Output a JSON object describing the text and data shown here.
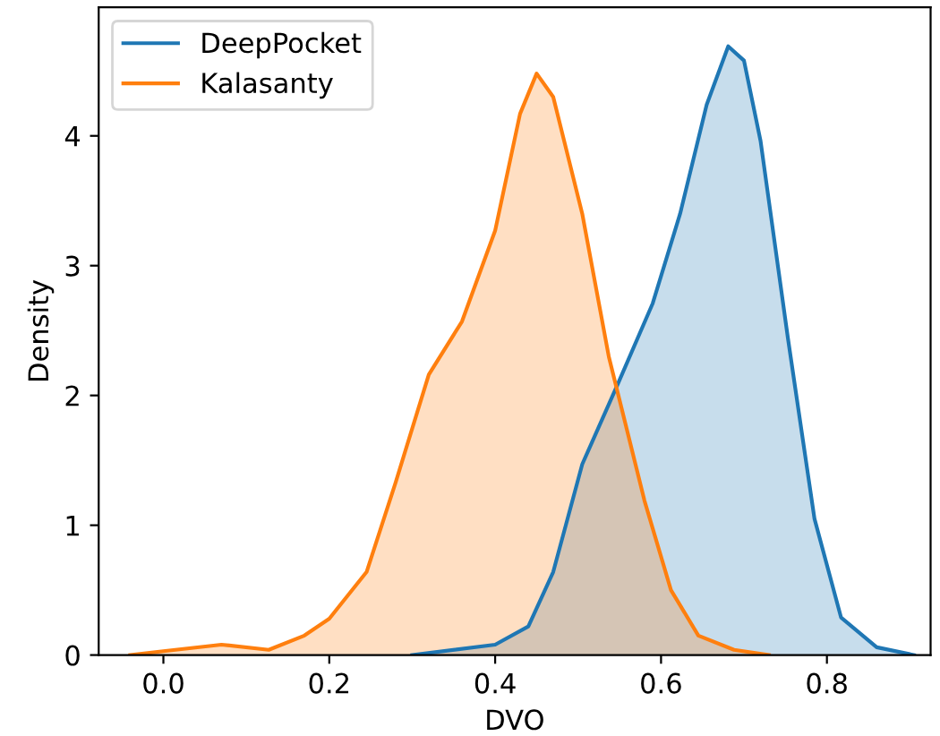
{
  "chart_data": {
    "type": "area",
    "xlabel": "DVO",
    "ylabel": "Density",
    "xlim": [
      -0.078,
      0.925
    ],
    "ylim": [
      0,
      4.99
    ],
    "xticks": [
      {
        "value": 0.0,
        "label": "0.0"
      },
      0.2,
      0.4,
      0.6,
      0.8
    ],
    "yticks": [
      0,
      1,
      2,
      3,
      4
    ],
    "grid": false,
    "legend": "top left",
    "series": [
      {
        "name": "DeepPocket",
        "color": "#1f77b4",
        "x": [
          0.3,
          0.4,
          0.44,
          0.47,
          0.505,
          0.548,
          0.59,
          0.623,
          0.655,
          0.681,
          0.7,
          0.72,
          0.753,
          0.785,
          0.817,
          0.86,
          0.905
        ],
        "values": [
          0,
          0.08,
          0.22,
          0.64,
          1.47,
          2.09,
          2.71,
          3.4,
          4.24,
          4.69,
          4.58,
          3.96,
          2.44,
          1.05,
          0.29,
          0.06,
          0
        ]
      },
      {
        "name": "Kalasanty",
        "color": "#ff7f0e",
        "x": [
          -0.04,
          0.0,
          0.07,
          0.127,
          0.17,
          0.2,
          0.245,
          0.28,
          0.32,
          0.36,
          0.4,
          0.43,
          0.45,
          0.47,
          0.505,
          0.537,
          0.58,
          0.612,
          0.645,
          0.688,
          0.73
        ],
        "values": [
          0,
          0.03,
          0.08,
          0.04,
          0.15,
          0.28,
          0.64,
          1.33,
          2.16,
          2.57,
          3.27,
          4.17,
          4.48,
          4.3,
          3.4,
          2.3,
          1.19,
          0.5,
          0.15,
          0.04,
          0
        ]
      }
    ]
  }
}
